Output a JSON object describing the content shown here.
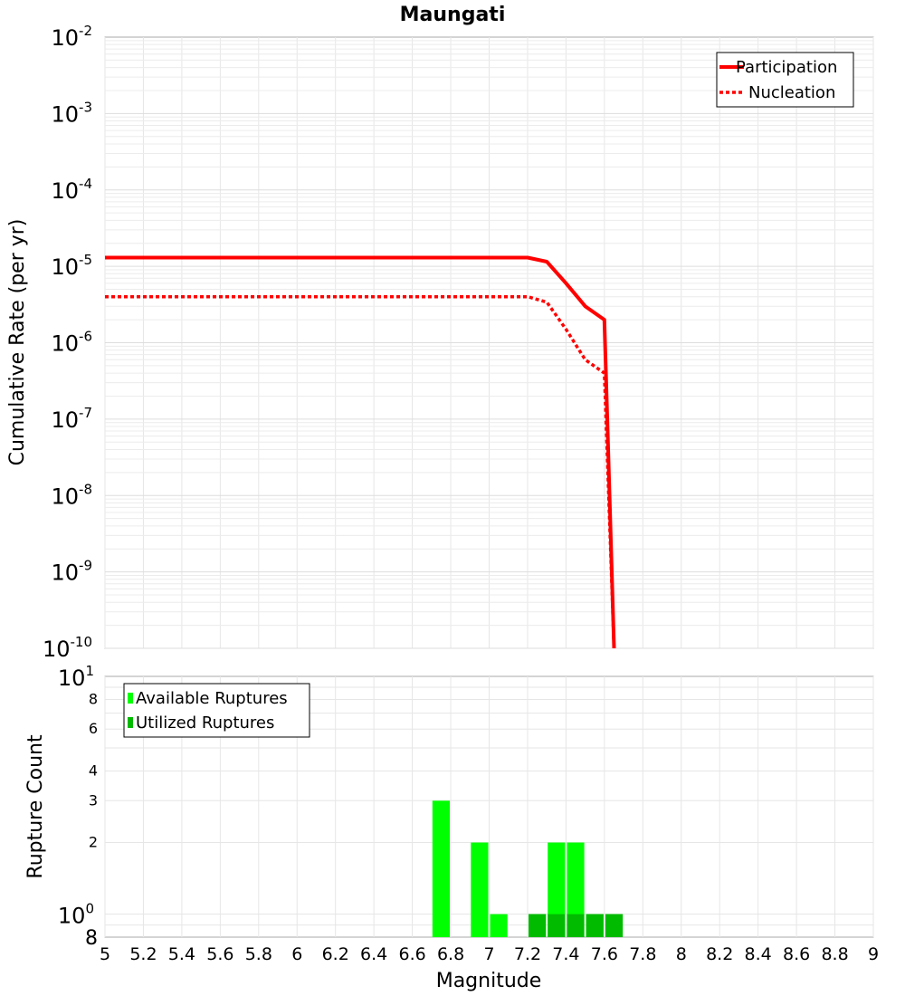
{
  "chart_data": [
    {
      "type": "line",
      "title": "Maungati",
      "xlabel": "",
      "ylabel": "Cumulative Rate (per yr)",
      "xlim": [
        5,
        9
      ],
      "ylim": [
        1e-10,
        0.01
      ],
      "yscale": "log",
      "grid": true,
      "legend_position": "top-right",
      "y_ticks": [
        {
          "mantissa": "10",
          "exp": "-2"
        },
        {
          "mantissa": "10",
          "exp": "-3"
        },
        {
          "mantissa": "10",
          "exp": "-4"
        },
        {
          "mantissa": "10",
          "exp": "-5"
        },
        {
          "mantissa": "10",
          "exp": "-6"
        },
        {
          "mantissa": "10",
          "exp": "-7"
        },
        {
          "mantissa": "10",
          "exp": "-8"
        },
        {
          "mantissa": "10",
          "exp": "-9"
        },
        {
          "mantissa": "10",
          "exp": "-10"
        }
      ],
      "series": [
        {
          "name": "Participation",
          "color": "#ff0000",
          "style": "solid",
          "x": [
            5.0,
            7.2,
            7.3,
            7.4,
            7.5,
            7.6,
            7.65
          ],
          "y": [
            1.3e-05,
            1.3e-05,
            1.15e-05,
            6e-06,
            3e-06,
            2e-06,
            1e-10
          ]
        },
        {
          "name": "Nucleation",
          "color": "#ff0000",
          "style": "dotted",
          "x": [
            5.0,
            7.2,
            7.3,
            7.4,
            7.5,
            7.6,
            7.65
          ],
          "y": [
            4e-06,
            4e-06,
            3.4e-06,
            1.5e-06,
            6e-07,
            4e-07,
            1e-10
          ]
        }
      ]
    },
    {
      "type": "bar",
      "title": "",
      "xlabel": "Magnitude",
      "ylabel": "Rupture Count",
      "xlim": [
        5,
        9
      ],
      "ylim": [
        0.8,
        10
      ],
      "yscale": "log",
      "grid": true,
      "legend_position": "top-left",
      "bin_width": 0.1,
      "x_ticks": [
        "5",
        "5.2",
        "5.4",
        "5.6",
        "5.8",
        "6",
        "6.2",
        "6.4",
        "6.6",
        "6.8",
        "7",
        "7.2",
        "7.4",
        "7.6",
        "7.8",
        "8",
        "8.2",
        "8.4",
        "8.6",
        "8.8",
        "9"
      ],
      "y_ticks": [
        {
          "value": 10,
          "mantissa": "10",
          "exp": "1",
          "major": true
        },
        {
          "value": 8,
          "label": "8",
          "major": false
        },
        {
          "value": 6,
          "label": "6",
          "major": false
        },
        {
          "value": 4,
          "label": "4",
          "major": false
        },
        {
          "value": 3,
          "label": "3",
          "major": false
        },
        {
          "value": 2,
          "label": "2",
          "major": false
        },
        {
          "value": 1,
          "mantissa": "10",
          "exp": "0",
          "major": true
        },
        {
          "value": 0.8,
          "label": "8",
          "major": true
        }
      ],
      "series": [
        {
          "name": "Available Ruptures",
          "color": "#00ff00",
          "x": [
            6.75,
            6.95,
            7.05,
            7.25,
            7.35,
            7.45,
            7.55,
            7.65
          ],
          "values": [
            3,
            2,
            1,
            1,
            2,
            2,
            1,
            1
          ]
        },
        {
          "name": "Utilized Ruptures",
          "color": "#00bb00",
          "x": [
            7.25,
            7.35,
            7.45,
            7.55,
            7.65
          ],
          "values": [
            1,
            1,
            1,
            1,
            1
          ]
        }
      ]
    }
  ]
}
